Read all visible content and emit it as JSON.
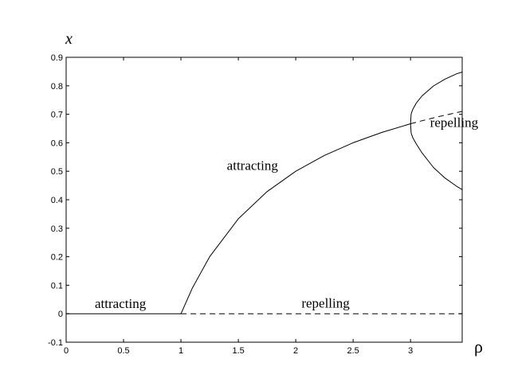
{
  "chart_data": {
    "type": "line",
    "title": "",
    "xlabel": "ρ",
    "ylabel": "x",
    "xlim": [
      0,
      3.45
    ],
    "ylim": [
      -0.1,
      0.9
    ],
    "xticks": [
      "0",
      "0.5",
      "1",
      "1.5",
      "2",
      "2.5",
      "3"
    ],
    "yticks": [
      "-0.1",
      "0",
      "0.1",
      "0.2",
      "0.3",
      "0.4",
      "0.5",
      "0.6",
      "0.7",
      "0.8",
      "0.9"
    ],
    "grid": false,
    "series": [
      {
        "style": "solid",
        "x": [
          0,
          1
        ],
        "y": [
          0,
          0
        ]
      },
      {
        "style": "dashed",
        "x": [
          1,
          3.45
        ],
        "y": [
          0,
          0
        ]
      },
      {
        "style": "solid",
        "x": [
          1,
          1.1,
          1.25,
          1.5,
          1.75,
          2,
          2.25,
          2.5,
          2.75,
          3
        ],
        "y": [
          0,
          0.0909,
          0.2,
          0.3333,
          0.4286,
          0.5,
          0.5556,
          0.6,
          0.6364,
          0.6667
        ]
      },
      {
        "style": "dashed",
        "x": [
          3,
          3.1,
          3.2,
          3.3,
          3.45
        ],
        "y": [
          0.6667,
          0.6774,
          0.6875,
          0.697,
          0.7101
        ]
      },
      {
        "style": "solid",
        "x": [
          3.45,
          3.4,
          3.3,
          3.2,
          3.1,
          3.05,
          3.02,
          3.01,
          3.005,
          3,
          3.005,
          3.01,
          3.02,
          3.05,
          3.1,
          3.2,
          3.3,
          3.4,
          3.45
        ],
        "y": [
          0.8482,
          0.842,
          0.8236,
          0.7995,
          0.7646,
          0.7395,
          0.718,
          0.7068,
          0.6998,
          0.6667,
          0.6356,
          0.6285,
          0.6173,
          0.5958,
          0.5646,
          0.513,
          0.4763,
          0.4477,
          0.4354
        ]
      }
    ],
    "annotations": [
      {
        "text": "attracting",
        "x": 0.25,
        "y": 0.02
      },
      {
        "text": "repelling",
        "x": 2.05,
        "y": 0.022
      },
      {
        "text": "attracting",
        "x": 1.4,
        "y": 0.505
      },
      {
        "text": "repelling",
        "x": 3.17,
        "y": 0.655
      }
    ]
  }
}
